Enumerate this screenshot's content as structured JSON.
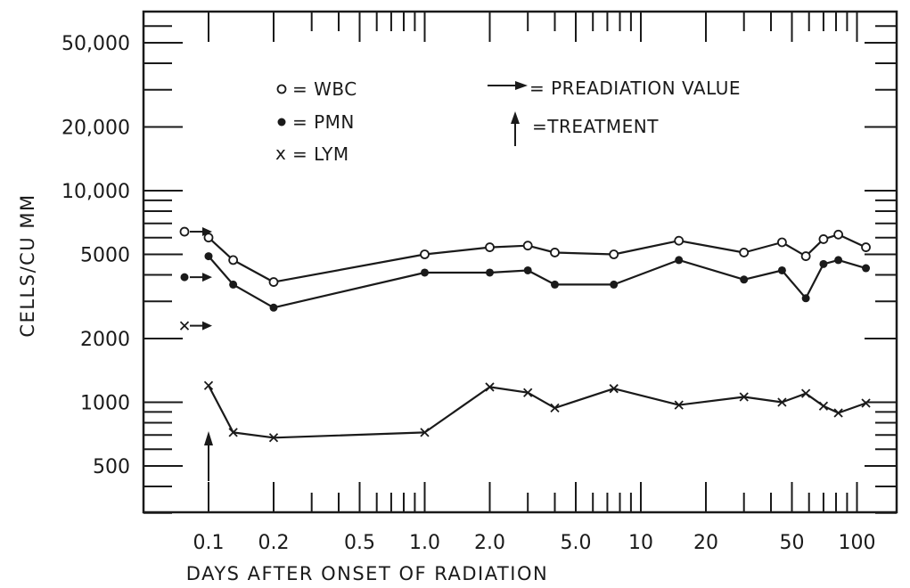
{
  "chart_data": {
    "type": "line",
    "x_scale": "log",
    "y_scale": "log",
    "xlim": [
      0.08,
      130
    ],
    "ylim": [
      300,
      65000
    ],
    "xlabel": "DAYS AFTER ONSET OF RADIATION",
    "ylabel": "CELLS/CU MM",
    "x_tick_labels": [
      {
        "value": 0.1,
        "label": "0.1"
      },
      {
        "value": 0.2,
        "label": "0.2"
      },
      {
        "value": 0.5,
        "label": "0.5"
      },
      {
        "value": 1.0,
        "label": "1.0"
      },
      {
        "value": 2.0,
        "label": "2.0"
      },
      {
        "value": 5.0,
        "label": "5.0"
      },
      {
        "value": 10,
        "label": "10"
      },
      {
        "value": 20,
        "label": "20"
      },
      {
        "value": 50,
        "label": "50"
      },
      {
        "value": 100,
        "label": "100"
      }
    ],
    "y_tick_labels": [
      {
        "value": 500,
        "label": "500"
      },
      {
        "value": 1000,
        "label": "1000"
      },
      {
        "value": 2000,
        "label": "2000"
      },
      {
        "value": 5000,
        "label": "5000"
      },
      {
        "value": 10000,
        "label": "10,000"
      },
      {
        "value": 20000,
        "label": "20,000"
      },
      {
        "value": 50000,
        "label": "50,000"
      }
    ],
    "grid": false,
    "legend": {
      "placement": "top",
      "entries": [
        {
          "symbol": "o",
          "text": "= WBC"
        },
        {
          "symbol": "•",
          "text": "= PMN"
        },
        {
          "symbol": "x",
          "text": "= LYM"
        },
        {
          "symbol": "arrow-right",
          "text": "= PREADIATION VALUE"
        },
        {
          "symbol": "arrow-up",
          "text": "=TREATMENT"
        }
      ]
    },
    "preradiation_values": [
      {
        "series": "WBC",
        "y": 6400,
        "marker": "open-circle"
      },
      {
        "series": "PMN",
        "y": 3900,
        "marker": "filled-circle"
      },
      {
        "series": "LYM",
        "y": 2300,
        "marker": "x"
      }
    ],
    "treatment_day": 0.1,
    "series": [
      {
        "name": "WBC",
        "marker": "open-circle",
        "x": [
          0.1,
          0.13,
          0.2,
          1.0,
          2.0,
          3.0,
          4.0,
          7.5,
          15,
          30,
          45,
          58,
          70,
          82,
          110
        ],
        "y": [
          6000,
          4700,
          3700,
          5000,
          5400,
          5500,
          5100,
          5000,
          5800,
          5100,
          5700,
          4900,
          5900,
          6200,
          5400
        ]
      },
      {
        "name": "PMN",
        "marker": "filled-circle",
        "x": [
          0.1,
          0.13,
          0.2,
          1.0,
          2.0,
          3.0,
          4.0,
          7.5,
          15,
          30,
          45,
          58,
          70,
          82,
          110
        ],
        "y": [
          4900,
          3600,
          2800,
          4100,
          4100,
          4200,
          3600,
          3600,
          4700,
          3800,
          4200,
          3100,
          4500,
          4700,
          4300
        ]
      },
      {
        "name": "LYM",
        "marker": "x",
        "x": [
          0.1,
          0.13,
          0.2,
          1.0,
          2.0,
          3.0,
          4.0,
          7.5,
          15,
          30,
          45,
          58,
          70,
          82,
          110
        ],
        "y": [
          1200,
          720,
          680,
          720,
          1180,
          1110,
          940,
          1160,
          970,
          1060,
          1000,
          1100,
          960,
          890,
          990
        ]
      }
    ]
  }
}
